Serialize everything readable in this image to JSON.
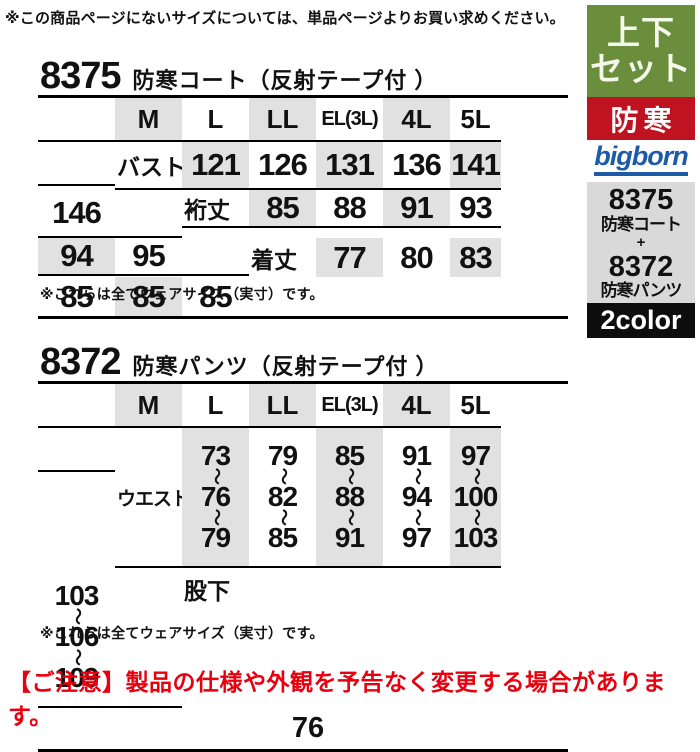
{
  "page": {
    "top_notice": "※この商品ページにないサイズについては、単品ページよりお買い求めください。",
    "bottom_notice": "【ご注意】製品の仕様や外観を予告なく変更する場合があります。"
  },
  "coat": {
    "code": "8375",
    "name": "防寒コート（反射テープ付 ）",
    "columns": [
      "M",
      "L",
      "LL",
      "EL(3L)",
      "4L",
      "5L"
    ],
    "rows": [
      {
        "label": "バスト",
        "values": [
          "121",
          "126",
          "131",
          "136",
          "141",
          "146"
        ]
      },
      {
        "label": "裄丈",
        "values": [
          "85",
          "88",
          "91",
          "93",
          "94",
          "95"
        ]
      },
      {
        "label": "着丈",
        "values": [
          "77",
          "80",
          "83",
          "85",
          "85",
          "85"
        ]
      }
    ],
    "note": "※これらは全てウェアサイズ（実寸）です。"
  },
  "pants": {
    "code": "8372",
    "name": "防寒パンツ（反射テープ付 ）",
    "columns": [
      "M",
      "L",
      "LL",
      "EL(3L)",
      "4L",
      "5L"
    ],
    "waist_label": "ウエスト",
    "range_separator": "〜",
    "waist_ranges": [
      [
        "73",
        "76",
        "79"
      ],
      [
        "79",
        "82",
        "85"
      ],
      [
        "85",
        "88",
        "91"
      ],
      [
        "91",
        "94",
        "97"
      ],
      [
        "97",
        "100",
        "103"
      ],
      [
        "103",
        "106",
        "109"
      ]
    ],
    "inseam_label": "股下",
    "inseam_value": "76",
    "note": "※これらは全てウェアサイズ（実寸）です。"
  },
  "sidebar": {
    "set_badge_line1": "上下",
    "set_badge_line2": "セット",
    "warm_badge": "防寒",
    "brand": "bigborn",
    "bundle_code1": "8375",
    "bundle_name1": "防寒コート",
    "bundle_plus": "+",
    "bundle_code2": "8372",
    "bundle_name2": "防寒パンツ",
    "color_badge": "2color"
  },
  "colors": {
    "set_badge_green": "#6a8e3c",
    "warm_badge_red": "#bf1322",
    "brand_blue": "#1e5ba7",
    "bundle_gray": "#d9d9d9",
    "color_badge_black": "#0d0d0d",
    "table_band_gray": "#e1e1e1",
    "bottom_notice_red": "#e8000f"
  }
}
